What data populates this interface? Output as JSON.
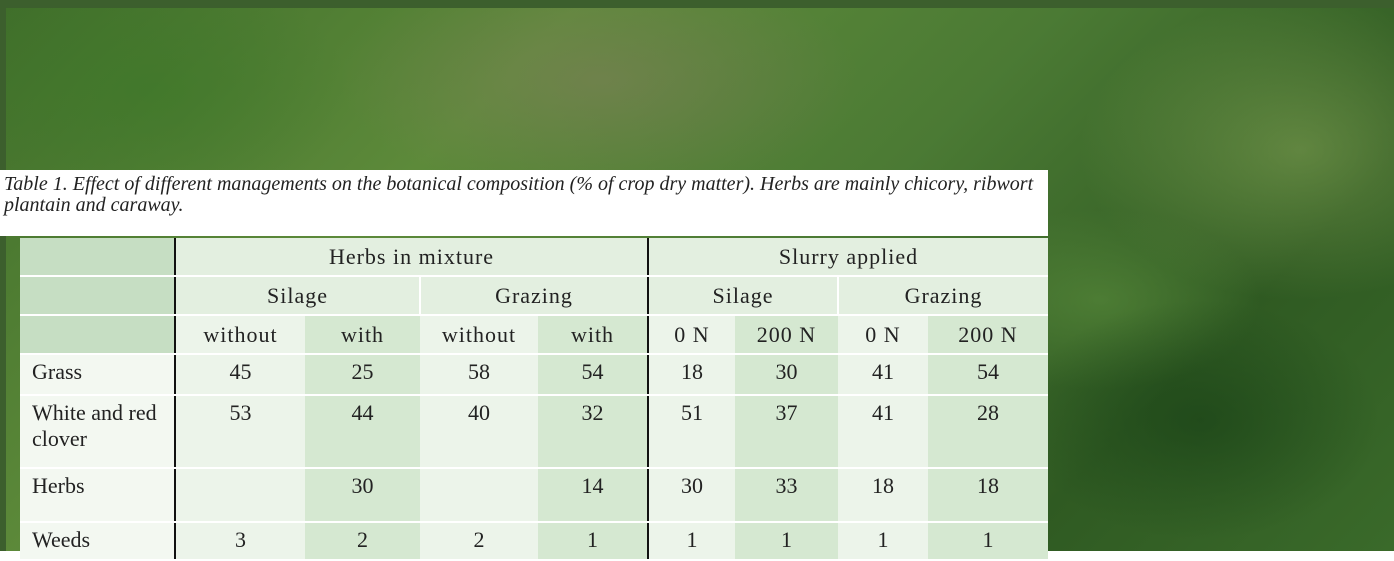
{
  "caption": "Table 1. Effect of different managements on the botanical composition (% of crop dry matter). Herbs are mainly chicory, ribwort plantain and caraway.",
  "header": {
    "groups": [
      {
        "label": "Herbs in mixture",
        "subgroups": [
          {
            "label": "Silage",
            "columns": [
              "without",
              "with"
            ]
          },
          {
            "label": "Grazing",
            "columns": [
              "without",
              "with"
            ]
          }
        ]
      },
      {
        "label": "Slurry applied",
        "subgroups": [
          {
            "label": "Silage",
            "columns": [
              "0 N",
              "200 N"
            ]
          },
          {
            "label": "Grazing",
            "columns": [
              "0 N",
              "200 N"
            ]
          }
        ]
      }
    ]
  },
  "rows": [
    {
      "label": "Grass",
      "values": [
        45,
        25,
        58,
        54,
        18,
        30,
        41,
        54
      ]
    },
    {
      "label": "White and red clover",
      "values": [
        53,
        44,
        40,
        32,
        51,
        37,
        41,
        28
      ]
    },
    {
      "label": "Herbs",
      "values": [
        null,
        30,
        null,
        14,
        30,
        33,
        18,
        18
      ]
    },
    {
      "label": "Weeds",
      "values": [
        3,
        2,
        2,
        1,
        1,
        1,
        1,
        1
      ]
    }
  ]
}
